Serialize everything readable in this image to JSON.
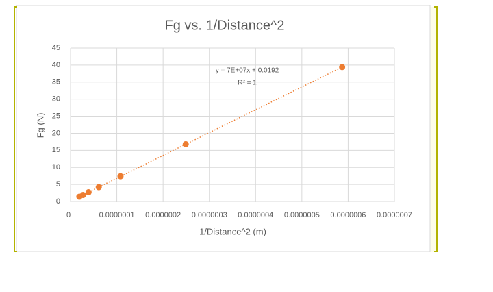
{
  "chart_data": {
    "type": "scatter",
    "title": "Fg vs. 1/Distance^2",
    "x_label": "1/Distance^2 (m)",
    "y_label": "Fg (N)",
    "series": [
      {
        "name": "Fg",
        "color": "#ed7d31",
        "x": [
          1.9e-08,
          2.7e-08,
          3.9e-08,
          6.1e-08,
          1.08e-07,
          2.49e-07,
          5.87e-07
        ],
        "values": [
          1.4,
          1.9,
          2.7,
          4.2,
          7.4,
          16.8,
          39.4
        ]
      }
    ],
    "annotations": [
      "y = 7E+07x + 0.0192",
      "R² = 1"
    ],
    "xlim": [
      0,
      7e-07
    ],
    "xticks": [
      0,
      {
        "value": 1e-07,
        "label": "0.0000001"
      },
      {
        "value": 2e-07,
        "label": "0.0000002"
      },
      {
        "value": 3e-07,
        "label": "0.0000003"
      },
      {
        "value": 4e-07,
        "label": "0.0000004"
      },
      {
        "value": 5e-07,
        "label": "0.0000005"
      },
      {
        "value": 6e-07,
        "label": "0.0000006"
      },
      {
        "value": 7e-07,
        "label": "0.0000007"
      }
    ],
    "ylim": [
      0,
      45
    ],
    "yticks": [
      0,
      5,
      10,
      15,
      20,
      25,
      30,
      35,
      40,
      45
    ],
    "grid": true
  }
}
